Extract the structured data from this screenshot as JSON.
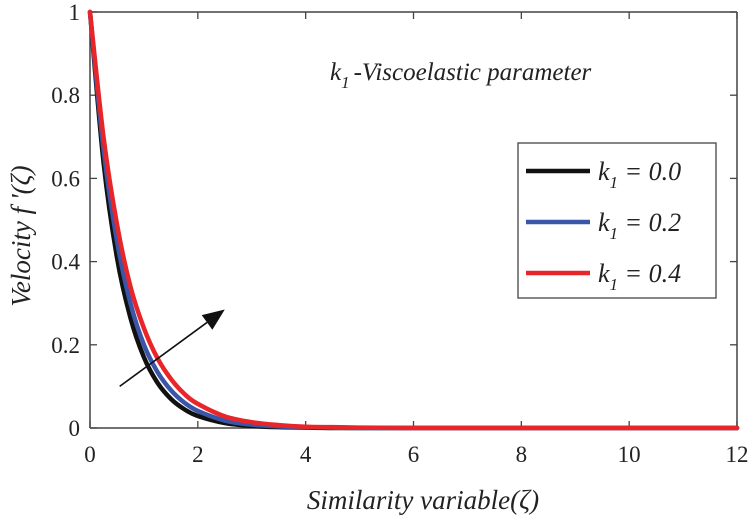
{
  "chart_data": {
    "type": "line",
    "xlabel": "Similarity variable(ζ)",
    "ylabel": "Velocity  f '(ζ)",
    "xlim": [
      0,
      12
    ],
    "ylim": [
      0,
      1
    ],
    "xticks": [
      "0",
      "2",
      "4",
      "6",
      "8",
      "10",
      "12"
    ],
    "yticks": [
      "0",
      "0.2",
      "0.4",
      "0.6",
      "0.8",
      "1"
    ],
    "annotation": {
      "symbol": "k",
      "subscript": "1",
      "text": "-Viscoelastic parameter"
    },
    "arrow": {
      "meaning": "increasing k1",
      "from": [
        0.55,
        0.1
      ],
      "to": [
        2.5,
        0.285
      ]
    },
    "legend_position": "right",
    "series": [
      {
        "name": "k1 = 0.0",
        "symbol": "k",
        "subscript": "1",
        "value_text": " = 0.0",
        "color": "#111111",
        "x": [
          0,
          0.25,
          0.5,
          0.75,
          1,
          1.25,
          1.5,
          1.75,
          2,
          2.5,
          3,
          3.5,
          4,
          4.5,
          5,
          6,
          7,
          8,
          9,
          10,
          11,
          12
        ],
        "y": [
          1,
          0.64,
          0.41,
          0.265,
          0.17,
          0.109,
          0.07,
          0.045,
          0.029,
          0.012,
          0.005,
          0.002,
          0.001,
          0,
          0,
          0,
          0,
          0,
          0,
          0,
          0,
          0
        ]
      },
      {
        "name": "k1 = 0.2",
        "symbol": "k",
        "subscript": "1",
        "value_text": " = 0.2",
        "color": "#3a56a8",
        "x": [
          0,
          0.25,
          0.5,
          0.75,
          1,
          1.25,
          1.5,
          1.75,
          2,
          2.5,
          3,
          3.5,
          4,
          4.5,
          5,
          6,
          7,
          8,
          9,
          10,
          11,
          12
        ],
        "y": [
          1,
          0.67,
          0.45,
          0.3,
          0.2,
          0.135,
          0.091,
          0.061,
          0.041,
          0.018,
          0.008,
          0.004,
          0.002,
          0.001,
          0,
          0,
          0,
          0,
          0,
          0,
          0,
          0
        ]
      },
      {
        "name": "k1 = 0.4",
        "symbol": "k",
        "subscript": "1",
        "value_text": " = 0.4",
        "color": "#e8262a",
        "x": [
          0,
          0.25,
          0.5,
          0.75,
          1,
          1.25,
          1.5,
          1.75,
          2,
          2.5,
          3,
          3.5,
          4,
          4.5,
          5,
          6,
          7,
          8,
          9,
          10,
          11,
          12
        ],
        "y": [
          1,
          0.7,
          0.49,
          0.34,
          0.24,
          0.168,
          0.118,
          0.082,
          0.058,
          0.028,
          0.014,
          0.007,
          0.003,
          0.002,
          0.001,
          0,
          0,
          0,
          0,
          0,
          0,
          0
        ]
      }
    ]
  }
}
